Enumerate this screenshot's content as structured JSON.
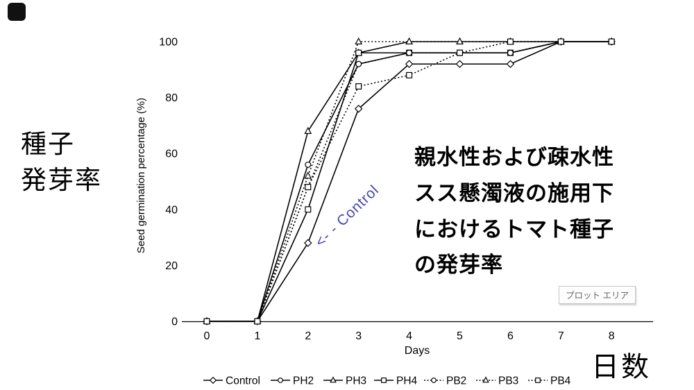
{
  "page": {
    "background": "#ffffff"
  },
  "left_title": "種子\n発芽率",
  "right_caption": "親水性および疎水性\nスス懸濁液の施用下\nにおけるトマト種子\nの発芽率",
  "bottom_right_label": "日数",
  "plot_area_tooltip": "プロット エリア",
  "control_annotation": "<- -  Control",
  "annotation_color": "#4444cc",
  "chart_data": {
    "type": "line",
    "title": "",
    "xlabel": "Days",
    "ylabel": "Seed germination percentage (%)",
    "x": [
      0,
      1,
      2,
      3,
      4,
      5,
      6,
      7,
      8
    ],
    "xlim": [
      0,
      8
    ],
    "ylim": [
      0,
      100
    ],
    "yticks": [
      0,
      20,
      40,
      60,
      80,
      100
    ],
    "xticks": [
      0,
      1,
      2,
      3,
      4,
      5,
      6,
      7,
      8
    ],
    "grid": false,
    "legend_position": "bottom",
    "line_color": "#000000",
    "marker_fill": "#ffffff",
    "series": [
      {
        "name": "Control",
        "marker": "diamond",
        "line": "solid",
        "values": [
          0,
          0,
          28,
          76,
          92,
          92,
          92,
          100,
          100
        ]
      },
      {
        "name": "PH2",
        "marker": "circle",
        "line": "solid",
        "values": [
          0,
          0,
          56,
          92,
          96,
          96,
          96,
          100,
          100
        ]
      },
      {
        "name": "PH3",
        "marker": "triangle",
        "line": "solid",
        "values": [
          0,
          0,
          68,
          96,
          100,
          100,
          100,
          100,
          100
        ]
      },
      {
        "name": "PH4",
        "marker": "square",
        "line": "solid",
        "values": [
          0,
          0,
          40,
          96,
          96,
          96,
          96,
          100,
          100
        ]
      },
      {
        "name": "PB2",
        "marker": "circle",
        "line": "dotted",
        "values": [
          0,
          0,
          48,
          92,
          96,
          96,
          96,
          100,
          100
        ]
      },
      {
        "name": "PB3",
        "marker": "triangle",
        "line": "dotted",
        "values": [
          0,
          0,
          52,
          100,
          100,
          100,
          100,
          100,
          100
        ]
      },
      {
        "name": "PB4",
        "marker": "square",
        "line": "dotted",
        "values": [
          0,
          0,
          48,
          84,
          88,
          96,
          100,
          100,
          100
        ]
      }
    ]
  }
}
